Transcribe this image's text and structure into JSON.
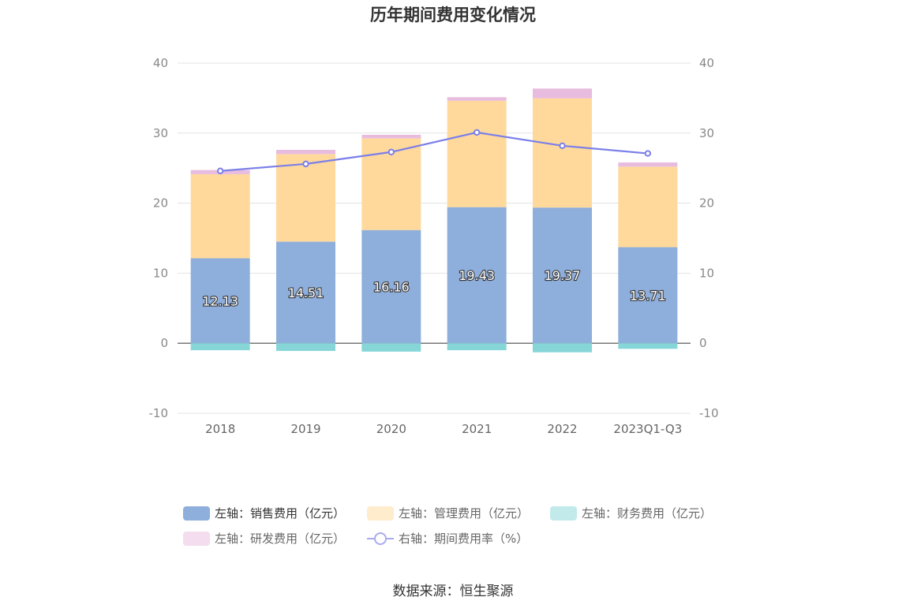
{
  "chart_data": {
    "type": "bar",
    "title": "历年期间费用变化情况",
    "categories": [
      "2018",
      "2019",
      "2020",
      "2021",
      "2022",
      "2023Q1-Q3"
    ],
    "series": [
      {
        "name": "左轴：销售费用（亿元）",
        "axis": "left",
        "kind": "bar",
        "color": "#8eaedb",
        "values": [
          12.13,
          14.51,
          16.16,
          19.43,
          19.37,
          13.71
        ],
        "labels": [
          "12.13",
          "14.51",
          "16.16",
          "19.43",
          "19.37",
          "13.71"
        ]
      },
      {
        "name": "左轴：管理费用（亿元）",
        "axis": "left",
        "kind": "bar",
        "color": "#ffd99c",
        "values": [
          12.0,
          12.5,
          13.1,
          15.2,
          15.6,
          11.5
        ]
      },
      {
        "name": "左轴：财务费用（亿元）",
        "axis": "left",
        "kind": "bar",
        "color": "#86d6d8",
        "values": [
          -1.0,
          -1.1,
          -1.2,
          -1.0,
          -1.3,
          -0.8
        ]
      },
      {
        "name": "左轴：研发费用（亿元）",
        "axis": "left",
        "kind": "bar",
        "color": "#e8bcdf",
        "values": [
          0.6,
          0.6,
          0.5,
          0.5,
          1.4,
          0.6
        ]
      },
      {
        "name": "右轴：期间费用率（%）",
        "axis": "right",
        "kind": "line",
        "color": "#7b7fe8",
        "values": [
          24.6,
          25.6,
          27.3,
          30.1,
          28.2,
          27.1
        ]
      }
    ],
    "y_left": {
      "min": -10,
      "max": 40,
      "ticks": [
        "40",
        "30",
        "20",
        "10",
        "0",
        "-10"
      ]
    },
    "y_right": {
      "min": -10,
      "max": 40,
      "ticks": [
        "40",
        "30",
        "20",
        "10",
        "0",
        "-10"
      ]
    },
    "legend_position": "bottom",
    "grid": true
  },
  "source_text": "数据来源：恒生聚源"
}
